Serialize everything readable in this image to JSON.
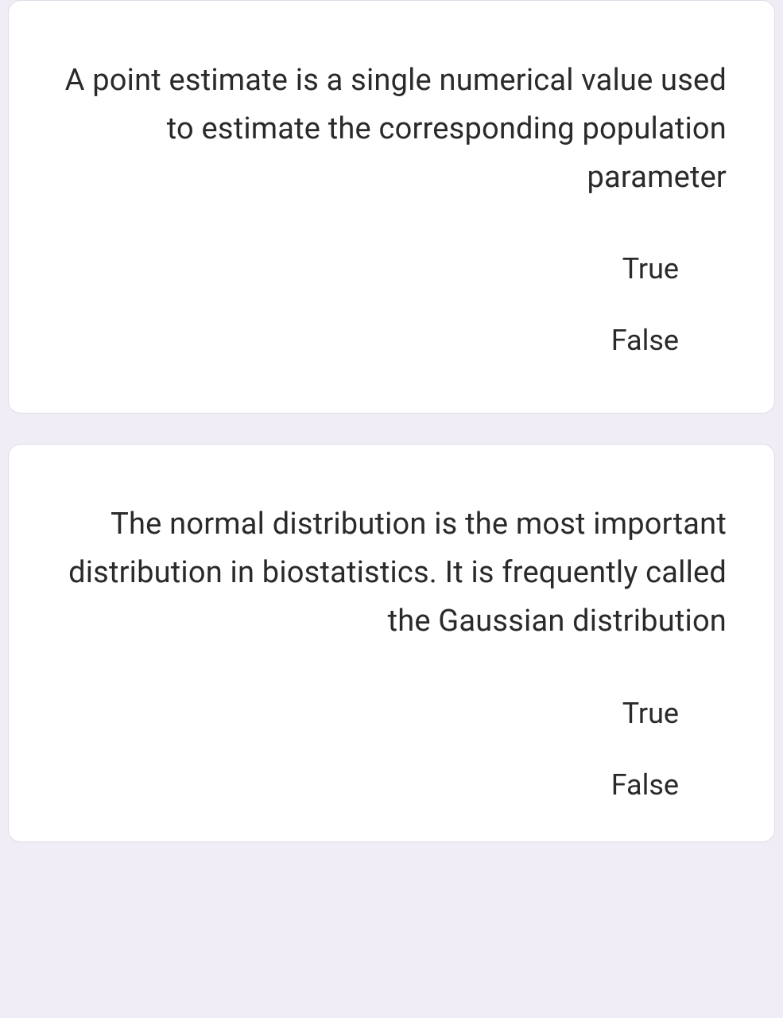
{
  "questions": [
    {
      "text": "A point estimate is a single numerical value used to estimate the corresponding population parameter",
      "options": [
        "True",
        "False"
      ]
    },
    {
      "text": "The normal distribution is the most important distribution in biostatistics.  It is frequently called the Gaussian distribution",
      "options": [
        "True",
        "False"
      ]
    }
  ],
  "styling": {
    "background_color": "#f0edf7",
    "card_background": "#ffffff",
    "card_border_color": "#e0dce8",
    "card_border_radius": 16,
    "text_color": "#2a2a2a",
    "question_fontsize": 38,
    "option_fontsize": 36,
    "text_align": "right"
  }
}
